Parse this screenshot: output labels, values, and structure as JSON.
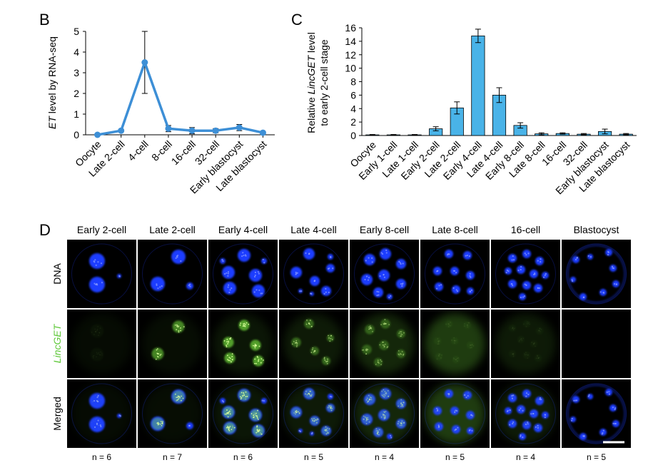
{
  "panels": {
    "b_label": "B",
    "c_label": "C",
    "d_label": "D"
  },
  "chart_data": [
    {
      "id": "B",
      "type": "line",
      "ylabel_italic": "ET",
      "ylabel_rest": " level by RNA-seq",
      "categories": [
        "Oocyte",
        "Late 2-cell",
        "4-cell",
        "8-cell",
        "16-cell",
        "32-cell",
        "Early blastocyst",
        "Late blastocyst"
      ],
      "values": [
        0,
        0.2,
        3.5,
        0.3,
        0.2,
        0.2,
        0.35,
        0.1
      ],
      "errors": [
        0,
        0.05,
        1.5,
        0.15,
        0.15,
        0.1,
        0.15,
        0.05
      ],
      "ylim": [
        0,
        5
      ],
      "yticks": [
        "0",
        "1",
        "2",
        "3",
        "4",
        "5"
      ],
      "color": "#3d8fd6"
    },
    {
      "id": "C",
      "type": "bar",
      "ylabel_line1_pre": "Relative ",
      "ylabel_line1_italic": "LincGET",
      "ylabel_line1_post": " level",
      "ylabel_line2": "to early 2-cell stage",
      "categories": [
        "Oocyte",
        "Early 1-cell",
        "Late 1-cell",
        "Early 2-cell",
        "Late 2-cell",
        "Early 4-cell",
        "Late 4-cell",
        "Early 8-cell",
        "Late 8-cell",
        "16-cell",
        "32-cell",
        "Early blastocyst",
        "Late blastocyst"
      ],
      "values": [
        0.1,
        0.1,
        0.1,
        1.0,
        4.1,
        14.8,
        6.0,
        1.5,
        0.25,
        0.3,
        0.2,
        0.6,
        0.2
      ],
      "errors": [
        0.05,
        0.05,
        0.05,
        0.3,
        0.9,
        1.0,
        1.1,
        0.4,
        0.15,
        0.1,
        0.1,
        0.35,
        0.1
      ],
      "ylim": [
        0,
        16
      ],
      "yticks": [
        "0",
        "2",
        "4",
        "6",
        "8",
        "10",
        "12",
        "14",
        "16"
      ],
      "color": "#49b3e8"
    }
  ],
  "micrographs": {
    "stages": [
      "Early 2-cell",
      "Late 2-cell",
      "Early 4-cell",
      "Late 4-cell",
      "Early 8-cell",
      "Late 8-cell",
      "16-cell",
      "Blastocyst"
    ],
    "rows": [
      "DNA",
      "LincGET",
      "Merged"
    ],
    "counts": [
      "n = 6",
      "n = 7",
      "n = 6",
      "n = 5",
      "n = 4",
      "n = 5",
      "n = 4",
      "n = 5"
    ],
    "colors": {
      "dna": "#1f3cff",
      "lincget": "#6fd63a",
      "label_green": "#5fc83a"
    }
  }
}
